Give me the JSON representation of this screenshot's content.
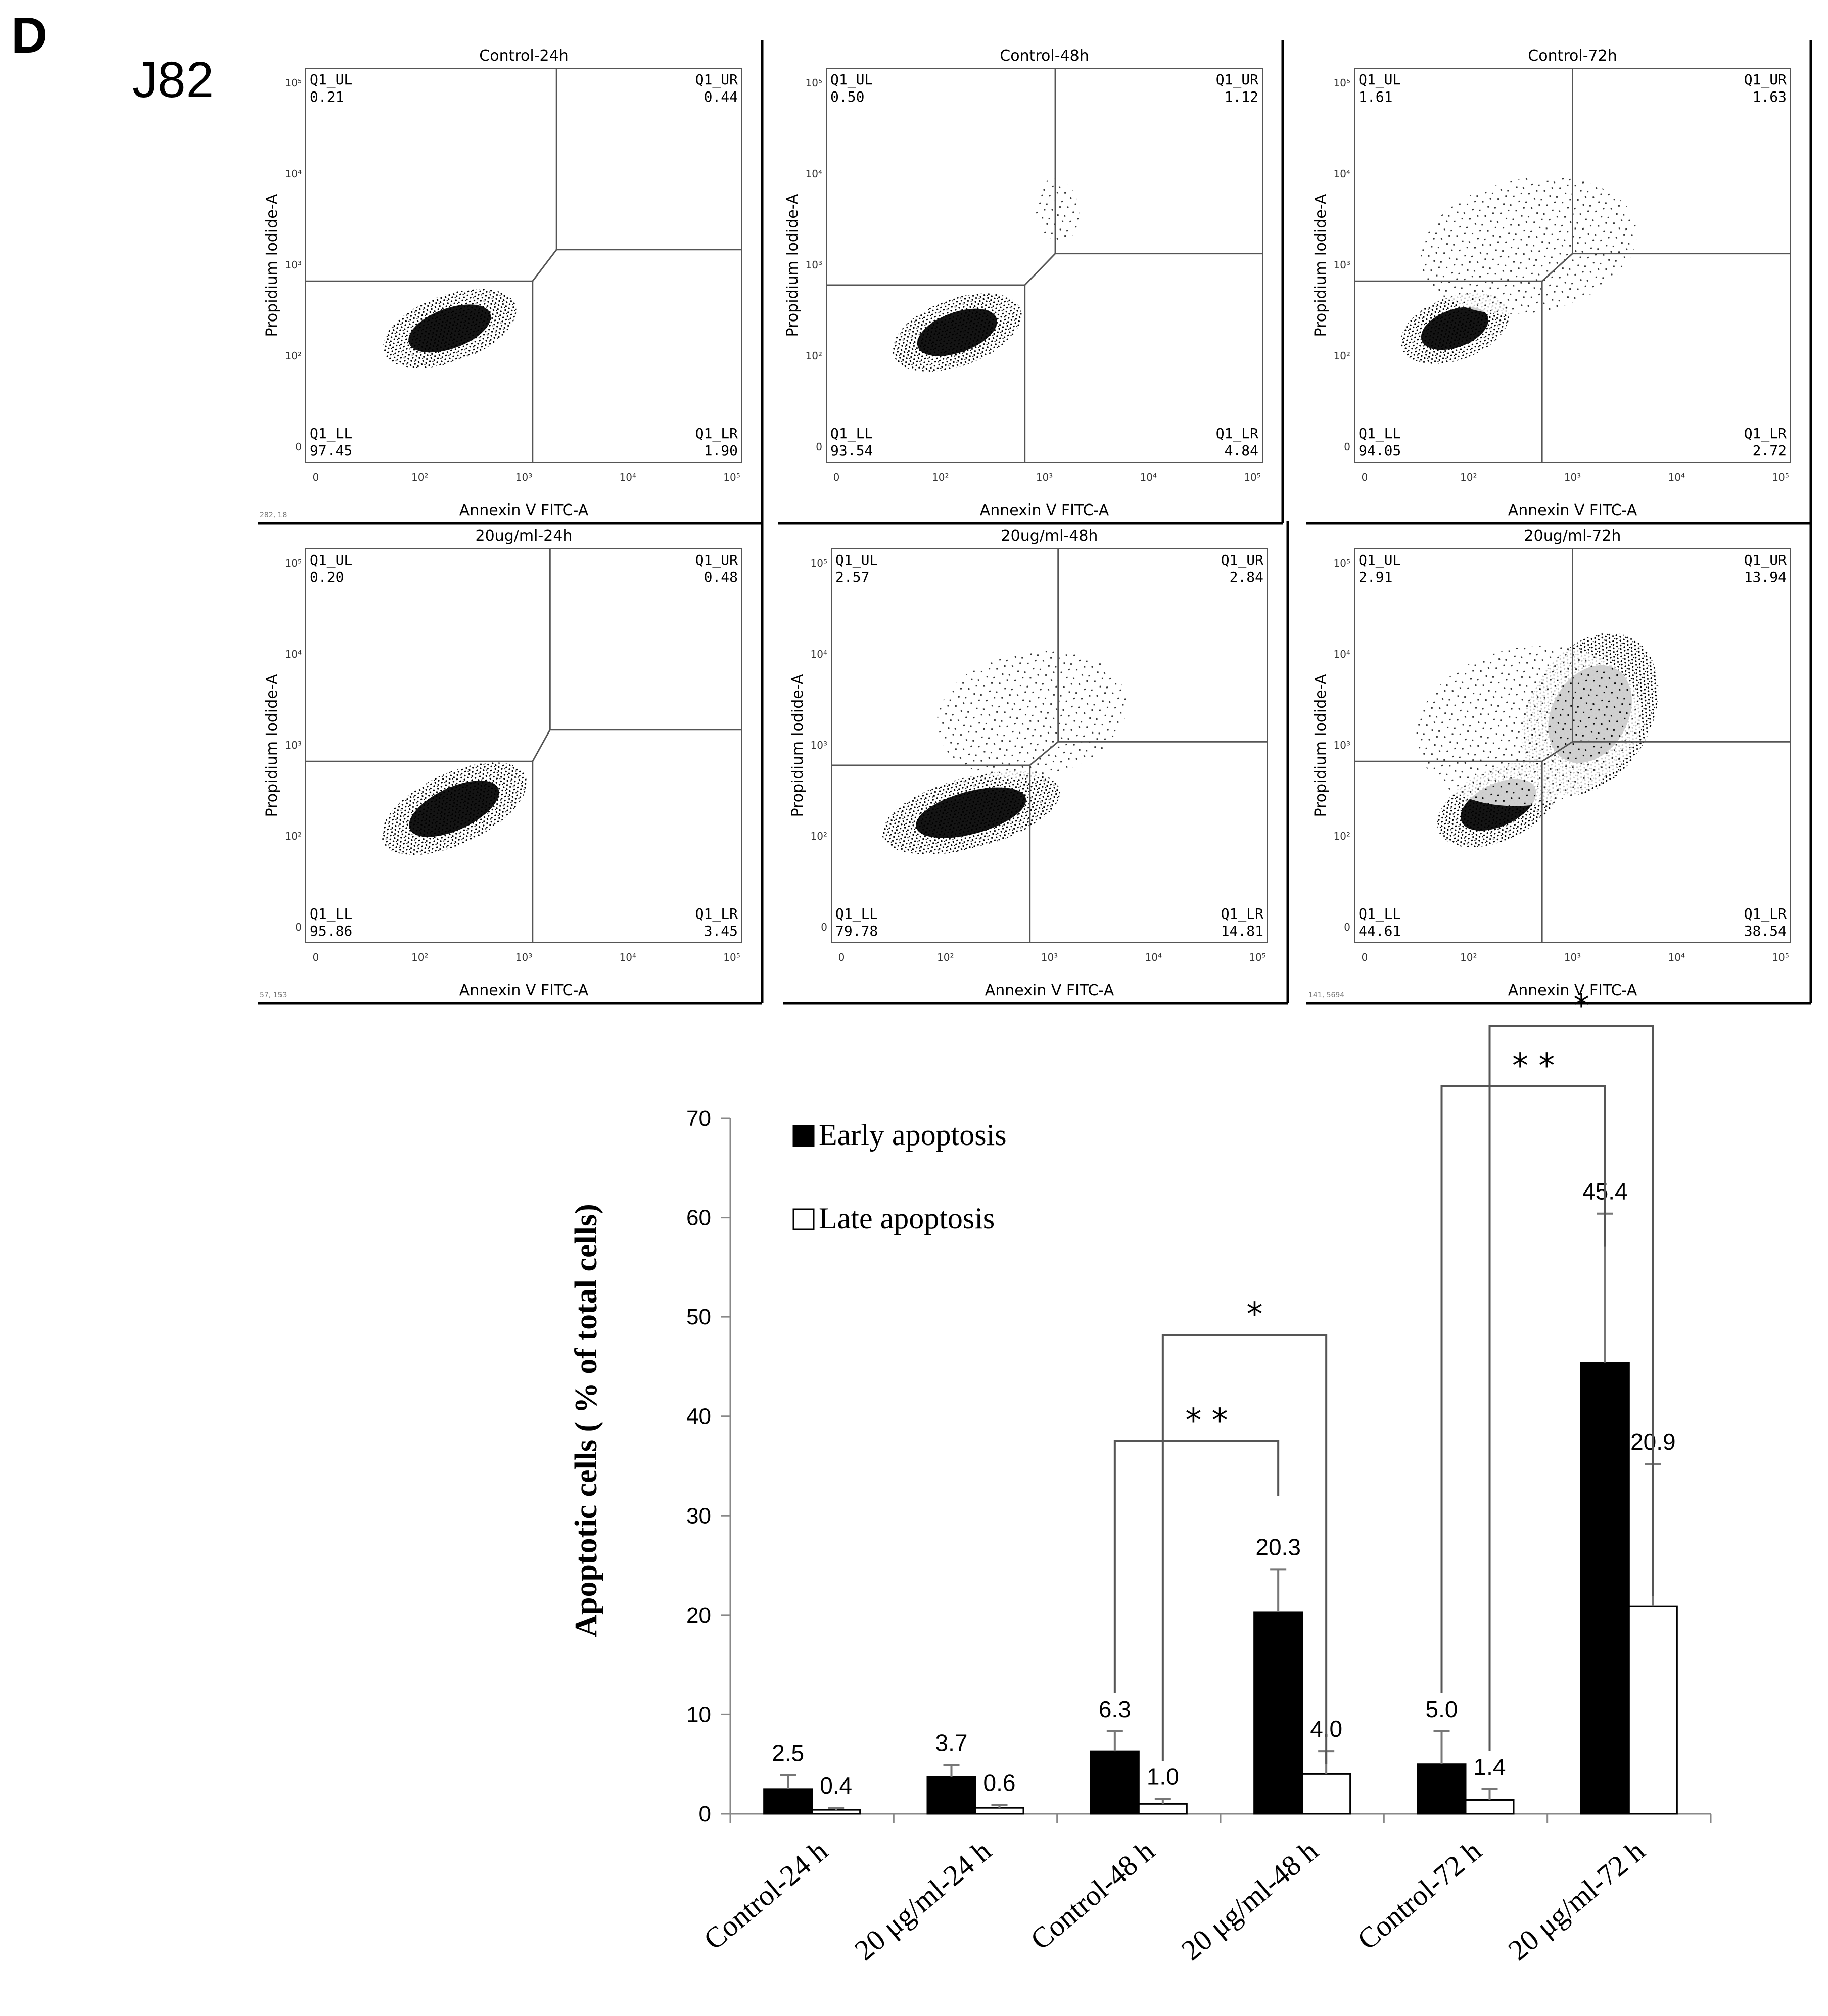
{
  "panel_letter": "D",
  "cell_line": "J82",
  "flow_common": {
    "quadrant_labels": {
      "ul": "Q1_UL",
      "ur": "Q1_UR",
      "ll": "Q1_LL",
      "lr": "Q1_LR"
    },
    "x_axis_label": "Annexin V FITC-A",
    "y_axis_label": "Propidium Iodide-A",
    "x_ticks": [
      "0",
      "10²",
      "10³",
      "10⁴",
      "10⁵"
    ],
    "y_ticks": [
      "0",
      "10²",
      "10³",
      "10⁴",
      "10⁵"
    ]
  },
  "flow_plots": [
    {
      "title": "Control-24h",
      "ul": "0.21",
      "ur": "0.44",
      "ll": "97.45",
      "lr": "1.90",
      "footer": "282, 18"
    },
    {
      "title": "Control-48h",
      "ul": "0.50",
      "ur": "1.12",
      "ll": "93.54",
      "lr": "4.84",
      "footer": ""
    },
    {
      "title": "Control-72h",
      "ul": "1.61",
      "ur": "1.63",
      "ll": "94.05",
      "lr": "2.72",
      "footer": ""
    },
    {
      "title": "20ug/ml-24h",
      "ul": "0.20",
      "ur": "0.48",
      "ll": "95.86",
      "lr": "3.45",
      "footer": "57, 153"
    },
    {
      "title": "20ug/ml-48h",
      "ul": "2.57",
      "ur": "2.84",
      "ll": "79.78",
      "lr": "14.81",
      "footer": ""
    },
    {
      "title": "20ug/ml-72h",
      "ul": "2.91",
      "ur": "13.94",
      "ll": "44.61",
      "lr": "38.54",
      "footer": "141, 5694"
    }
  ],
  "chart_data": {
    "type": "bar",
    "title": "",
    "xlabel": "",
    "ylabel": "Apoptotic cells ( % of total cells)",
    "ylim": [
      0,
      70
    ],
    "yticks": [
      0,
      10,
      20,
      30,
      40,
      50,
      60,
      70
    ],
    "grid": false,
    "legend_position": "top-left",
    "categories": [
      "Control-24 h",
      "20 μg/ml-24 h",
      "Control-48 h",
      "20 μg/ml-48 h",
      "Control-72 h",
      "20 μg/ml-72 h"
    ],
    "series": [
      {
        "name": "Early apoptosis",
        "color": "#000000",
        "values": [
          2.5,
          3.7,
          6.3,
          20.3,
          5.0,
          45.4
        ],
        "errors": [
          1.4,
          1.2,
          2.0,
          4.3,
          3.3,
          15.0
        ],
        "labels": [
          "2.5",
          "3.7",
          "6.3",
          "20.3",
          "5.0",
          "45.4"
        ]
      },
      {
        "name": "Late apoptosis",
        "color": "#ffffff",
        "values": [
          0.4,
          0.6,
          1.0,
          4.0,
          1.4,
          20.9
        ],
        "errors": [
          0.2,
          0.3,
          0.5,
          2.3,
          1.1,
          14.3
        ],
        "labels": [
          "0.4",
          "0.6",
          "1.0",
          "4.0",
          "1.4",
          "20.9"
        ]
      }
    ],
    "significance": [
      {
        "from_category": 2,
        "from_series": 0,
        "to_category": 3,
        "to_series": 0,
        "label": "* *"
      },
      {
        "from_category": 2,
        "from_series": 1,
        "to_category": 3,
        "to_series": 1,
        "label": "*"
      },
      {
        "from_category": 4,
        "from_series": 0,
        "to_category": 5,
        "to_series": 0,
        "label": "* *"
      },
      {
        "from_category": 4,
        "from_series": 1,
        "to_category": 5,
        "to_series": 1,
        "label": "*"
      }
    ]
  }
}
